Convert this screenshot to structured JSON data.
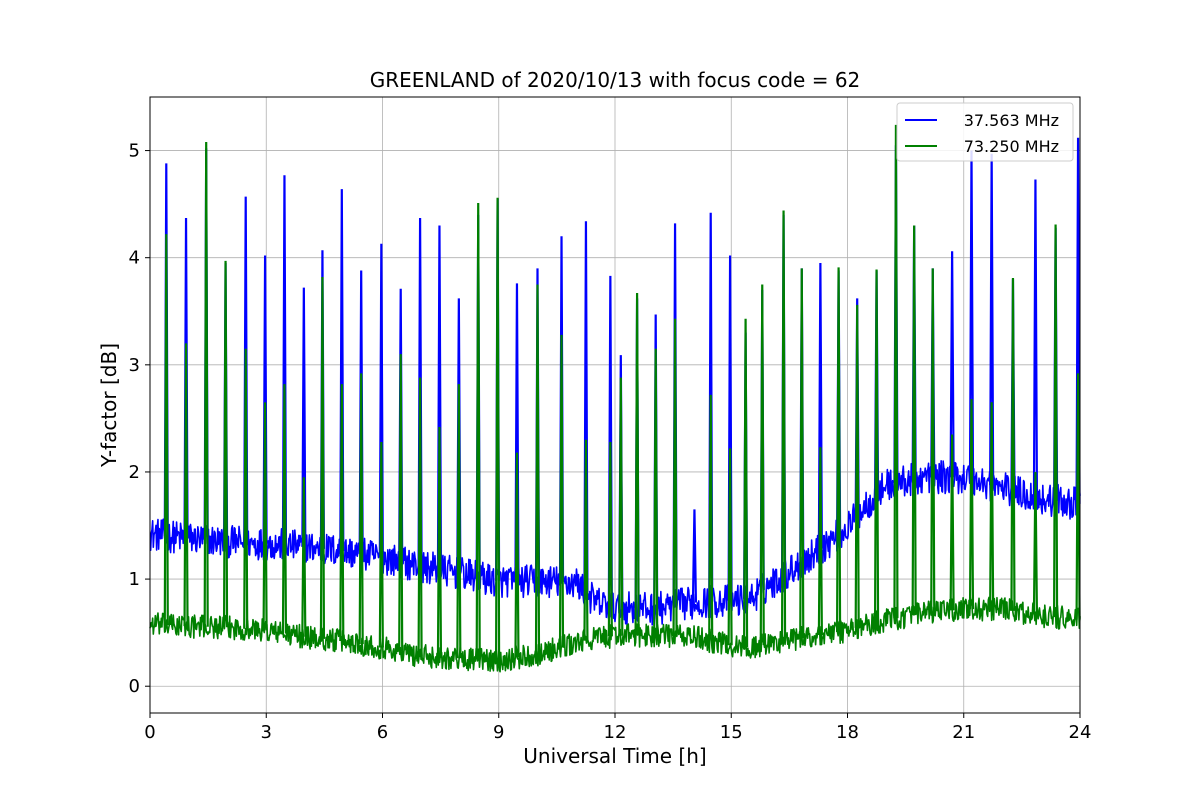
{
  "chart_data": {
    "type": "line",
    "title": "GREENLAND of 2020/10/13 with focus code = 62",
    "xlabel": "Universal Time [h]",
    "ylabel": "Y-factor [dB]",
    "xlim": [
      0,
      24
    ],
    "ylim": [
      -0.25,
      5.5
    ],
    "xticks": [
      0,
      3,
      6,
      9,
      12,
      15,
      18,
      21,
      24
    ],
    "xtick_labels": [
      "0",
      "3",
      "6",
      "9",
      "12",
      "15",
      "18",
      "21",
      "24"
    ],
    "yticks": [
      0,
      1,
      2,
      3,
      4,
      5
    ],
    "ytick_labels": [
      "0",
      "1",
      "2",
      "3",
      "4",
      "5"
    ],
    "grid": true,
    "legend_position": "top-right",
    "series": [
      {
        "name": "37.563 MHz",
        "color": "#0000ff",
        "baseline": {
          "x": [
            0,
            1,
            2,
            3,
            4,
            5,
            6,
            7,
            8,
            9,
            10,
            11,
            11.5,
            12,
            13,
            14,
            15,
            15.5,
            16,
            17,
            18,
            18.5,
            19,
            20,
            21,
            22,
            23,
            24
          ],
          "y": [
            1.42,
            1.38,
            1.35,
            1.33,
            1.3,
            1.26,
            1.2,
            1.12,
            1.05,
            0.98,
            0.98,
            0.97,
            0.78,
            0.74,
            0.72,
            0.78,
            0.8,
            0.82,
            0.95,
            1.2,
            1.48,
            1.7,
            1.88,
            1.95,
            1.95,
            1.85,
            1.75,
            1.7
          ]
        },
        "noise": 0.28,
        "spikes": [
          {
            "x": 0.42,
            "y": 4.88
          },
          {
            "x": 0.93,
            "y": 4.37
          },
          {
            "x": 1.45,
            "y": 5.02
          },
          {
            "x": 1.95,
            "y": 3.95
          },
          {
            "x": 2.47,
            "y": 4.57
          },
          {
            "x": 2.97,
            "y": 4.02
          },
          {
            "x": 3.47,
            "y": 4.77
          },
          {
            "x": 3.97,
            "y": 3.72
          },
          {
            "x": 4.45,
            "y": 4.07
          },
          {
            "x": 4.95,
            "y": 4.64
          },
          {
            "x": 5.45,
            "y": 3.88
          },
          {
            "x": 5.97,
            "y": 4.13
          },
          {
            "x": 6.47,
            "y": 3.71
          },
          {
            "x": 6.97,
            "y": 4.37
          },
          {
            "x": 7.47,
            "y": 4.3
          },
          {
            "x": 7.97,
            "y": 3.62
          },
          {
            "x": 8.47,
            "y": 4.4
          },
          {
            "x": 8.97,
            "y": 4.55
          },
          {
            "x": 9.47,
            "y": 3.76
          },
          {
            "x": 10.0,
            "y": 3.9
          },
          {
            "x": 10.62,
            "y": 4.2
          },
          {
            "x": 11.25,
            "y": 4.34
          },
          {
            "x": 11.88,
            "y": 3.83
          },
          {
            "x": 12.15,
            "y": 3.09
          },
          {
            "x": 12.57,
            "y": 3.62
          },
          {
            "x": 13.05,
            "y": 3.47
          },
          {
            "x": 13.55,
            "y": 4.32
          },
          {
            "x": 14.05,
            "y": 1.65
          },
          {
            "x": 14.47,
            "y": 4.42
          },
          {
            "x": 14.97,
            "y": 4.02
          },
          {
            "x": 15.37,
            "y": 3.3
          },
          {
            "x": 15.8,
            "y": 3.7
          },
          {
            "x": 16.35,
            "y": 4.4
          },
          {
            "x": 16.82,
            "y": 3.9
          },
          {
            "x": 17.3,
            "y": 3.95
          },
          {
            "x": 17.77,
            "y": 3.88
          },
          {
            "x": 18.25,
            "y": 3.62
          },
          {
            "x": 18.75,
            "y": 3.88
          },
          {
            "x": 19.25,
            "y": 5.05
          },
          {
            "x": 19.72,
            "y": 4.3
          },
          {
            "x": 20.2,
            "y": 3.9
          },
          {
            "x": 20.7,
            "y": 4.06
          },
          {
            "x": 21.2,
            "y": 5.0
          },
          {
            "x": 21.72,
            "y": 4.97
          },
          {
            "x": 22.27,
            "y": 3.8
          },
          {
            "x": 22.85,
            "y": 4.73
          },
          {
            "x": 23.37,
            "y": 4.28
          },
          {
            "x": 23.95,
            "y": 5.12
          }
        ]
      },
      {
        "name": "73.250 MHz",
        "color": "#008000",
        "baseline": {
          "x": [
            0,
            1,
            2,
            3,
            4,
            5,
            6,
            7,
            8,
            9,
            10,
            11,
            11.5,
            12,
            13,
            14,
            15,
            15.5,
            16,
            17,
            18,
            19,
            20,
            21,
            22,
            23,
            24
          ],
          "y": [
            0.58,
            0.56,
            0.55,
            0.52,
            0.46,
            0.42,
            0.36,
            0.28,
            0.26,
            0.24,
            0.3,
            0.4,
            0.45,
            0.47,
            0.48,
            0.46,
            0.38,
            0.36,
            0.4,
            0.46,
            0.52,
            0.62,
            0.68,
            0.72,
            0.72,
            0.66,
            0.62
          ]
        },
        "noise": 0.2,
        "spikes": [
          {
            "x": 0.42,
            "y": 4.22
          },
          {
            "x": 0.93,
            "y": 3.2
          },
          {
            "x": 1.45,
            "y": 5.08
          },
          {
            "x": 1.95,
            "y": 3.97
          },
          {
            "x": 2.47,
            "y": 3.15
          },
          {
            "x": 2.97,
            "y": 2.65
          },
          {
            "x": 3.47,
            "y": 2.82
          },
          {
            "x": 3.97,
            "y": 1.95
          },
          {
            "x": 4.45,
            "y": 3.82
          },
          {
            "x": 4.95,
            "y": 2.82
          },
          {
            "x": 5.45,
            "y": 2.92
          },
          {
            "x": 5.97,
            "y": 2.28
          },
          {
            "x": 6.47,
            "y": 3.1
          },
          {
            "x": 6.97,
            "y": 2.88
          },
          {
            "x": 7.47,
            "y": 2.42
          },
          {
            "x": 7.97,
            "y": 2.82
          },
          {
            "x": 8.47,
            "y": 4.51
          },
          {
            "x": 8.97,
            "y": 4.56
          },
          {
            "x": 9.47,
            "y": 2.18
          },
          {
            "x": 10.0,
            "y": 3.75
          },
          {
            "x": 10.62,
            "y": 3.28
          },
          {
            "x": 11.25,
            "y": 2.3
          },
          {
            "x": 11.88,
            "y": 2.28
          },
          {
            "x": 12.15,
            "y": 2.88
          },
          {
            "x": 12.57,
            "y": 3.67
          },
          {
            "x": 13.05,
            "y": 3.15
          },
          {
            "x": 13.55,
            "y": 3.43
          },
          {
            "x": 14.47,
            "y": 2.72
          },
          {
            "x": 14.97,
            "y": 2.22
          },
          {
            "x": 15.37,
            "y": 3.43
          },
          {
            "x": 15.8,
            "y": 3.75
          },
          {
            "x": 16.35,
            "y": 4.44
          },
          {
            "x": 16.82,
            "y": 3.9
          },
          {
            "x": 17.3,
            "y": 2.23
          },
          {
            "x": 17.77,
            "y": 3.91
          },
          {
            "x": 18.25,
            "y": 3.56
          },
          {
            "x": 18.75,
            "y": 3.89
          },
          {
            "x": 19.25,
            "y": 5.24
          },
          {
            "x": 19.72,
            "y": 4.3
          },
          {
            "x": 20.2,
            "y": 3.9
          },
          {
            "x": 20.7,
            "y": 2.35
          },
          {
            "x": 21.2,
            "y": 2.68
          },
          {
            "x": 21.72,
            "y": 2.65
          },
          {
            "x": 22.27,
            "y": 3.81
          },
          {
            "x": 22.85,
            "y": 2.0
          },
          {
            "x": 23.37,
            "y": 4.31
          },
          {
            "x": 23.95,
            "y": 2.92
          }
        ]
      }
    ]
  }
}
